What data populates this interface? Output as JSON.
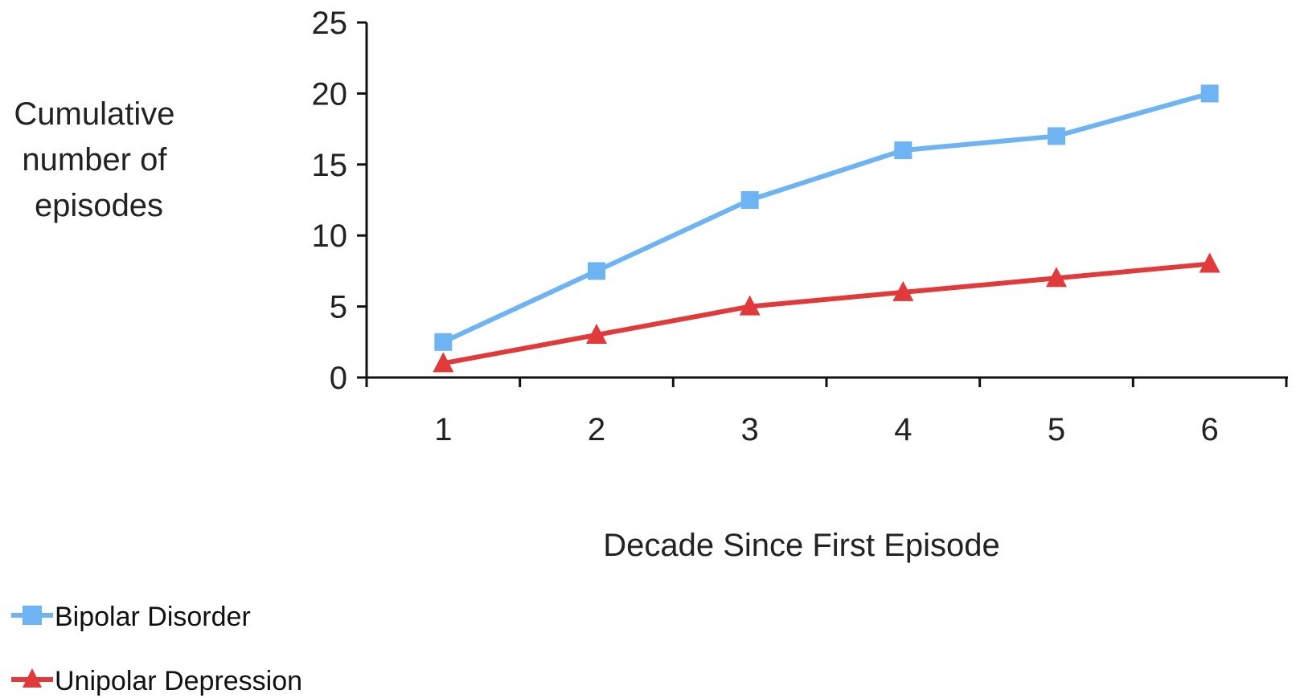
{
  "chart_data": {
    "type": "line",
    "categories": [
      "1",
      "2",
      "3",
      "4",
      "5",
      "6"
    ],
    "x": [
      1,
      2,
      3,
      4,
      5,
      6
    ],
    "xlabel": "Decade Since First Episode",
    "ylabel_lines": [
      "Cumulative",
      "number of",
      "episodes"
    ],
    "ylim": [
      0,
      25
    ],
    "yticks": [
      "0",
      "5",
      "10",
      "15",
      "20",
      "25"
    ],
    "grid": false,
    "legend_position": "bottom-left",
    "series": [
      {
        "name": "Bipolar Disorder",
        "values": [
          2.5,
          7.5,
          12.5,
          16,
          17,
          20
        ],
        "color": "#6fb4f2",
        "marker": "square"
      },
      {
        "name": "Unipolar Depression",
        "values": [
          1,
          3,
          5,
          6,
          7,
          8
        ],
        "color": "#e03a3a",
        "marker": "triangle"
      }
    ]
  }
}
